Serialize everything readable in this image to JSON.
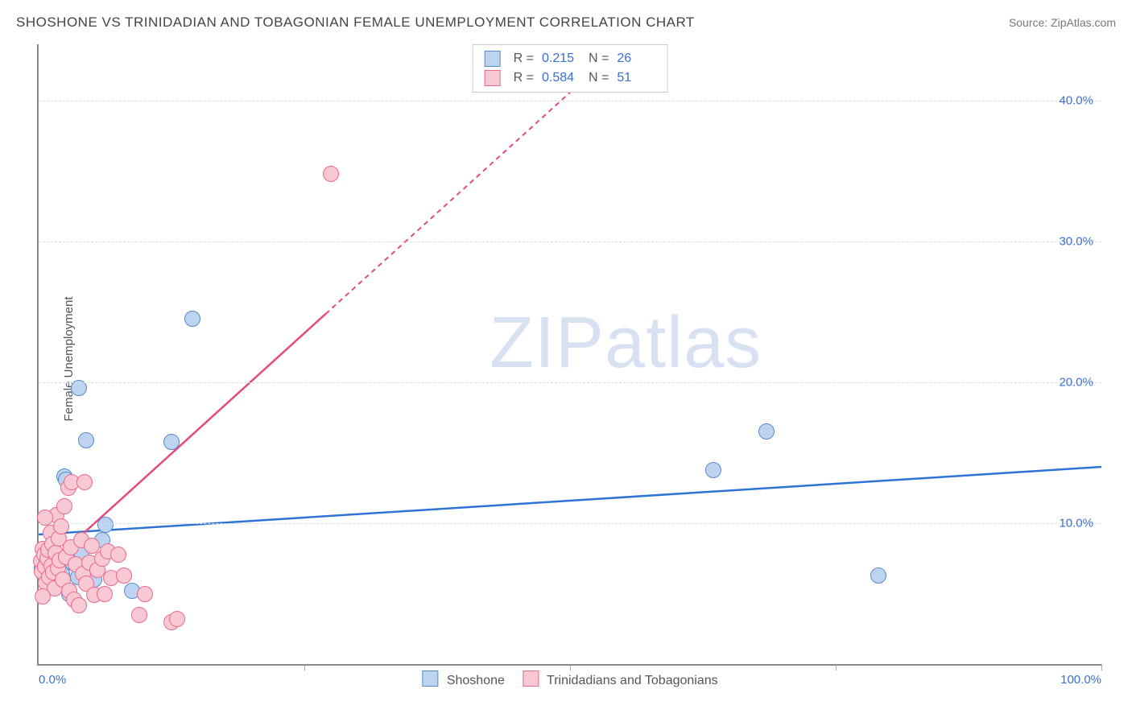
{
  "title": "SHOSHONE VS TRINIDADIAN AND TOBAGONIAN FEMALE UNEMPLOYMENT CORRELATION CHART",
  "source": "Source: ZipAtlas.com",
  "ylabel": "Female Unemployment",
  "watermark": "ZIPatlas",
  "chart": {
    "type": "scatter",
    "background_color": "#ffffff",
    "grid_color": "#dddddd",
    "axis_color": "#888888",
    "tick_color": "#3a6fd8",
    "xlim": [
      0,
      100
    ],
    "ylim": [
      0,
      44
    ],
    "yticks": [
      10,
      20,
      30,
      40
    ],
    "ytick_labels": [
      "10.0%",
      "20.0%",
      "30.0%",
      "40.0%"
    ],
    "xticks_major": [
      25,
      50,
      75,
      100
    ],
    "xtick_labels": [
      {
        "pos": 0,
        "label": "0.0%"
      },
      {
        "pos": 100,
        "label": "100.0%"
      }
    ],
    "point_radius": 9,
    "series": [
      {
        "name": "Shoshone",
        "label": "Shoshone",
        "fill": "#bcd4ef",
        "stroke": "#5a8ac9",
        "trend_color": "#2e74d6",
        "trend_dash": "none",
        "r_value": "0.215",
        "n_value": "26",
        "trend": {
          "x1": 0,
          "y1": 9.2,
          "x2": 100,
          "y2": 14.0
        },
        "points": [
          {
            "x": 0.3,
            "y": 6.8
          },
          {
            "x": 0.6,
            "y": 7.1
          },
          {
            "x": 0.9,
            "y": 5.9
          },
          {
            "x": 1.1,
            "y": 7.5
          },
          {
            "x": 1.3,
            "y": 5.5
          },
          {
            "x": 1.6,
            "y": 8.8
          },
          {
            "x": 1.9,
            "y": 7.0
          },
          {
            "x": 2.2,
            "y": 6.4
          },
          {
            "x": 2.4,
            "y": 13.3
          },
          {
            "x": 2.6,
            "y": 13.1
          },
          {
            "x": 2.9,
            "y": 5.0
          },
          {
            "x": 3.2,
            "y": 7.2
          },
          {
            "x": 3.7,
            "y": 6.2
          },
          {
            "x": 3.8,
            "y": 19.6
          },
          {
            "x": 4.0,
            "y": 7.9
          },
          {
            "x": 4.5,
            "y": 15.9
          },
          {
            "x": 5.2,
            "y": 6.0
          },
          {
            "x": 6.0,
            "y": 8.8
          },
          {
            "x": 6.3,
            "y": 9.9
          },
          {
            "x": 8.8,
            "y": 5.2
          },
          {
            "x": 12.5,
            "y": 15.8
          },
          {
            "x": 14.5,
            "y": 24.5
          },
          {
            "x": 63.5,
            "y": 13.8
          },
          {
            "x": 68.5,
            "y": 16.5
          },
          {
            "x": 79.0,
            "y": 6.3
          },
          {
            "x": 1.0,
            "y": 6.2
          }
        ]
      },
      {
        "name": "Trinidadians and Tobagonians",
        "label": "Trinidadians and Tobagonians",
        "fill": "#f8c8d4",
        "stroke": "#e96a8c",
        "trend_color": "#e64a7a",
        "trend_dash": "6,5",
        "r_value": "0.584",
        "n_value": "51",
        "trend": {
          "x1": 0,
          "y1": 6.4,
          "x2": 55,
          "y2": 44
        },
        "trend_solid_until_x": 27,
        "points": [
          {
            "x": 0.2,
            "y": 7.3
          },
          {
            "x": 0.3,
            "y": 6.6
          },
          {
            "x": 0.4,
            "y": 8.2
          },
          {
            "x": 0.5,
            "y": 7.8
          },
          {
            "x": 0.6,
            "y": 6.9
          },
          {
            "x": 0.7,
            "y": 5.8
          },
          {
            "x": 0.8,
            "y": 7.5
          },
          {
            "x": 0.9,
            "y": 8.1
          },
          {
            "x": 1.0,
            "y": 6.2
          },
          {
            "x": 1.1,
            "y": 9.3
          },
          {
            "x": 1.2,
            "y": 7.0
          },
          {
            "x": 1.3,
            "y": 8.5
          },
          {
            "x": 1.4,
            "y": 6.5
          },
          {
            "x": 1.5,
            "y": 5.4
          },
          {
            "x": 1.6,
            "y": 7.9
          },
          {
            "x": 1.7,
            "y": 10.6
          },
          {
            "x": 1.8,
            "y": 6.8
          },
          {
            "x": 1.9,
            "y": 8.9
          },
          {
            "x": 2.0,
            "y": 7.4
          },
          {
            "x": 2.1,
            "y": 9.8
          },
          {
            "x": 2.3,
            "y": 6.0
          },
          {
            "x": 2.4,
            "y": 11.2
          },
          {
            "x": 2.6,
            "y": 7.6
          },
          {
            "x": 2.8,
            "y": 12.5
          },
          {
            "x": 2.9,
            "y": 5.2
          },
          {
            "x": 3.0,
            "y": 8.3
          },
          {
            "x": 3.1,
            "y": 12.9
          },
          {
            "x": 3.3,
            "y": 4.6
          },
          {
            "x": 3.5,
            "y": 7.1
          },
          {
            "x": 3.8,
            "y": 4.2
          },
          {
            "x": 4.0,
            "y": 8.8
          },
          {
            "x": 4.2,
            "y": 6.4
          },
          {
            "x": 4.3,
            "y": 12.9
          },
          {
            "x": 4.5,
            "y": 5.7
          },
          {
            "x": 4.8,
            "y": 7.2
          },
          {
            "x": 5.0,
            "y": 8.4
          },
          {
            "x": 5.2,
            "y": 4.9
          },
          {
            "x": 5.5,
            "y": 6.7
          },
          {
            "x": 6.0,
            "y": 7.5
          },
          {
            "x": 6.2,
            "y": 5.0
          },
          {
            "x": 6.5,
            "y": 8.0
          },
          {
            "x": 6.8,
            "y": 6.1
          },
          {
            "x": 7.5,
            "y": 7.8
          },
          {
            "x": 8.0,
            "y": 6.3
          },
          {
            "x": 9.5,
            "y": 3.5
          },
          {
            "x": 10.0,
            "y": 5.0
          },
          {
            "x": 12.5,
            "y": 3.0
          },
          {
            "x": 13.0,
            "y": 3.2
          },
          {
            "x": 0.4,
            "y": 4.8
          },
          {
            "x": 0.6,
            "y": 10.4
          },
          {
            "x": 27.5,
            "y": 34.8
          }
        ]
      }
    ],
    "legend_stats_labels": {
      "r": "R  =",
      "n": "N  ="
    }
  }
}
